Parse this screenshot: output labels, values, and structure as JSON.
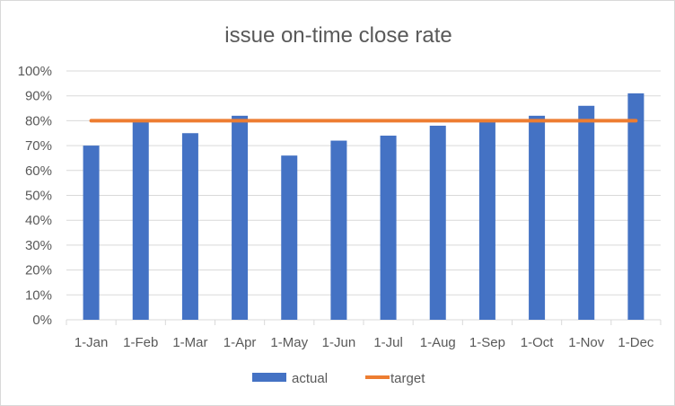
{
  "chart_data": {
    "type": "bar",
    "title": "issue on-time close rate",
    "xlabel": "",
    "ylabel": "",
    "categories": [
      "1-Jan",
      "1-Feb",
      "1-Mar",
      "1-Apr",
      "1-May",
      "1-Jun",
      "1-Jul",
      "1-Aug",
      "1-Sep",
      "1-Oct",
      "1-Nov",
      "1-Dec"
    ],
    "ylim": [
      0,
      100
    ],
    "yticks": [
      "0%",
      "10%",
      "20%",
      "30%",
      "40%",
      "50%",
      "60%",
      "70%",
      "80%",
      "90%",
      "100%"
    ],
    "grid": true,
    "legend_position": "bottom",
    "series": [
      {
        "name": "actual",
        "type": "bar",
        "color": "#4472C4",
        "values": [
          70,
          80,
          75,
          82,
          66,
          72,
          74,
          78,
          80,
          82,
          86,
          91
        ]
      },
      {
        "name": "target",
        "type": "line",
        "color": "#ED7D31",
        "values": [
          80,
          80,
          80,
          80,
          80,
          80,
          80,
          80,
          80,
          80,
          80,
          80
        ]
      }
    ]
  }
}
